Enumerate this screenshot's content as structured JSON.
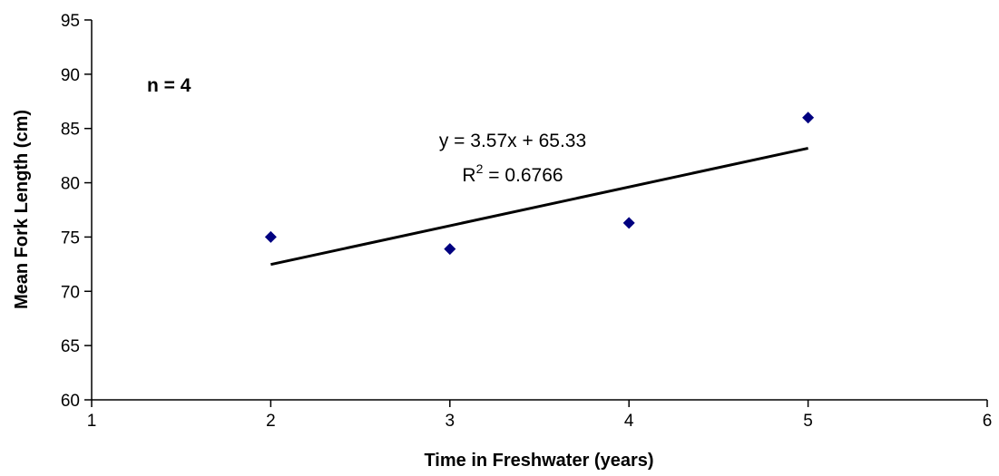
{
  "chart_data": {
    "type": "scatter",
    "title": "",
    "xlabel": "Time in Freshwater (years)",
    "ylabel": "Mean Fork Length (cm)",
    "xlim": [
      1,
      6
    ],
    "ylim": [
      60,
      95
    ],
    "xticks": [
      1,
      2,
      3,
      4,
      5,
      6
    ],
    "yticks": [
      60,
      65,
      70,
      75,
      80,
      85,
      90,
      95
    ],
    "grid": false,
    "legend": "none",
    "series": [
      {
        "x": [
          2,
          3,
          4,
          5
        ],
        "y": [
          75.0,
          73.9,
          76.3,
          86.0
        ],
        "marker": "diamond",
        "color": "#000080"
      }
    ],
    "trendline": {
      "slope": 3.57,
      "intercept": 65.33,
      "x_range": [
        2,
        5
      ],
      "color": "#000000"
    },
    "annotations": {
      "sample_size": "n = 4",
      "equation": "y = 3.57x + 65.33",
      "r2_prefix": "R",
      "r2_superscript": "2",
      "r2_value": " = 0.6766"
    }
  }
}
